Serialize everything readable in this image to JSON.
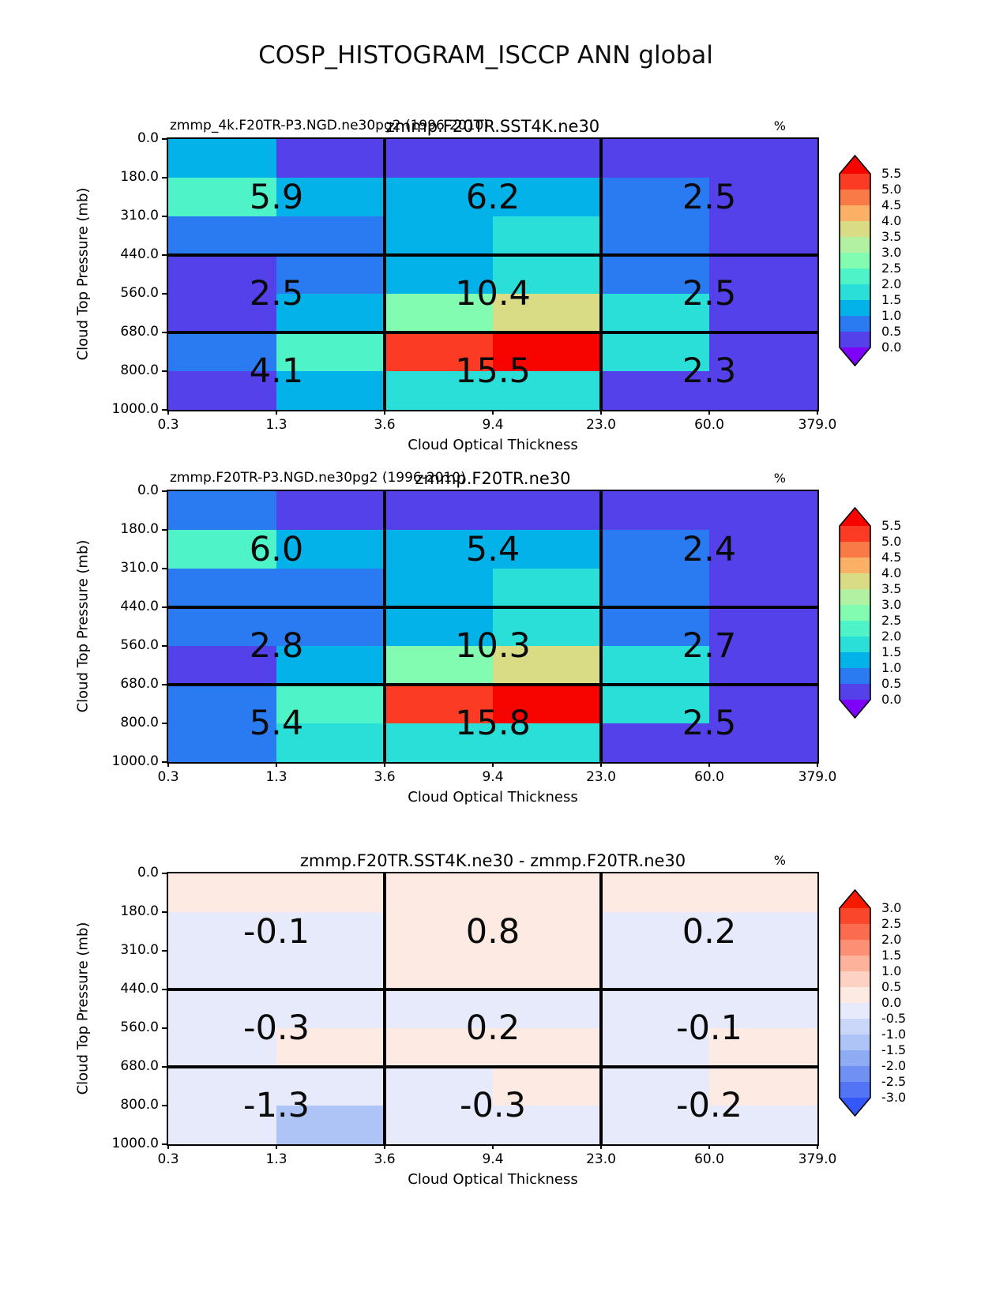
{
  "main_title": "COSP_HISTOGRAM_ISCCP ANN global",
  "shared": {
    "x_label": "Cloud Optical Thickness",
    "y_label": "Cloud Top Pressure (mb)",
    "x_ticks": [
      "0.3",
      "1.3",
      "3.6",
      "9.4",
      "23.0",
      "60.0",
      "379.0"
    ],
    "y_ticks": [
      "0.0",
      "180.0",
      "310.0",
      "440.0",
      "560.0",
      "680.0",
      "800.0",
      "1000.0"
    ],
    "unit_label": "%"
  },
  "panels": [
    {
      "name": "panel-1",
      "title_left": "zmmp_4k.F20TR-P3.NGD.ne30pg2 (1996-2010)",
      "title_center": "zmmp.F20TR.SST4K.ne30",
      "block_values": [
        [
          "5.9",
          "6.2",
          "2.5"
        ],
        [
          "2.5",
          "10.4",
          "2.5"
        ],
        [
          "4.1",
          "15.5",
          "2.3"
        ]
      ],
      "cell_colors": [
        [
          "#02b2e8",
          "#5441e9",
          "#5441e9",
          "#5441e9",
          "#5441e9",
          "#5441e9"
        ],
        [
          "#4ff3c8",
          "#02b2e8",
          "#02b2e8",
          "#02b2e8",
          "#2a7bf2",
          "#5441e9"
        ],
        [
          "#2a7bf2",
          "#2a7bf2",
          "#02b2e8",
          "#29dfd8",
          "#2a7bf2",
          "#5441e9"
        ],
        [
          "#5441e9",
          "#2a7bf2",
          "#02b2e8",
          "#29dfd8",
          "#2a7bf2",
          "#5441e9"
        ],
        [
          "#5441e9",
          "#02b2e8",
          "#81fcb1",
          "#d9dc84",
          "#29dfd8",
          "#5441e9"
        ],
        [
          "#2a7bf2",
          "#4ff3c8",
          "#fb3b24",
          "#f80400",
          "#29dfd8",
          "#5441e9"
        ],
        [
          "#5441e9",
          "#02b2e8",
          "#29dfd8",
          "#29dfd8",
          "#5441e9",
          "#5441e9"
        ]
      ],
      "colorbar": {
        "tick_labels": [
          "5.5",
          "5.0",
          "4.5",
          "4.0",
          "3.5",
          "3.0",
          "2.5",
          "2.0",
          "1.5",
          "1.0",
          "0.5",
          "0.0"
        ],
        "band_colors": [
          "#fb3b24",
          "#fa7a47",
          "#fbb165",
          "#d9dc84",
          "#b2f0a2",
          "#81fcb1",
          "#4ff3c8",
          "#29dfd8",
          "#02b2e8",
          "#2a7bf2",
          "#5441e9"
        ],
        "over_color": "#f80400",
        "under_color": "#7d02f7"
      }
    },
    {
      "name": "panel-2",
      "title_left": "zmmp.F20TR-P3.NGD.ne30pg2 (1996-2010)",
      "title_center": "zmmp.F20TR.ne30",
      "block_values": [
        [
          "6.0",
          "5.4",
          "2.4"
        ],
        [
          "2.8",
          "10.3",
          "2.7"
        ],
        [
          "5.4",
          "15.8",
          "2.5"
        ]
      ],
      "cell_colors": [
        [
          "#2a7bf2",
          "#5441e9",
          "#5441e9",
          "#5441e9",
          "#5441e9",
          "#5441e9"
        ],
        [
          "#4ff3c8",
          "#02b2e8",
          "#02b2e8",
          "#02b2e8",
          "#2a7bf2",
          "#5441e9"
        ],
        [
          "#2a7bf2",
          "#2a7bf2",
          "#02b2e8",
          "#29dfd8",
          "#2a7bf2",
          "#5441e9"
        ],
        [
          "#2a7bf2",
          "#2a7bf2",
          "#02b2e8",
          "#29dfd8",
          "#2a7bf2",
          "#5441e9"
        ],
        [
          "#5441e9",
          "#02b2e8",
          "#81fcb1",
          "#d9dc84",
          "#29dfd8",
          "#5441e9"
        ],
        [
          "#2a7bf2",
          "#4ff3c8",
          "#fb3b24",
          "#f80400",
          "#29dfd8",
          "#5441e9"
        ],
        [
          "#2a7bf2",
          "#29dfd8",
          "#29dfd8",
          "#29dfd8",
          "#5441e9",
          "#5441e9"
        ]
      ],
      "colorbar": {
        "tick_labels": [
          "5.5",
          "5.0",
          "4.5",
          "4.0",
          "3.5",
          "3.0",
          "2.5",
          "2.0",
          "1.5",
          "1.0",
          "0.5",
          "0.0"
        ],
        "band_colors": [
          "#fb3b24",
          "#fa7a47",
          "#fbb165",
          "#d9dc84",
          "#b2f0a2",
          "#81fcb1",
          "#4ff3c8",
          "#29dfd8",
          "#02b2e8",
          "#2a7bf2",
          "#5441e9"
        ],
        "over_color": "#f80400",
        "under_color": "#7d02f7"
      }
    },
    {
      "name": "panel-3",
      "title_left": "",
      "title_center": "zmmp.F20TR.SST4K.ne30 - zmmp.F20TR.ne30",
      "block_values": [
        [
          "-0.1",
          "0.8",
          "0.2"
        ],
        [
          "-0.3",
          "0.2",
          "-0.1"
        ],
        [
          "-1.3",
          "-0.3",
          "-0.2"
        ]
      ],
      "cell_colors": [
        [
          "#fdeae2",
          "#fdeae2",
          "#fdeae2",
          "#fdeae2",
          "#fdeae2",
          "#fdeae2"
        ],
        [
          "#e7eafb",
          "#e7eafb",
          "#fdeae2",
          "#fdeae2",
          "#e7eafb",
          "#e7eafb"
        ],
        [
          "#e7eafb",
          "#e7eafb",
          "#fdeae2",
          "#fdeae2",
          "#e7eafb",
          "#e7eafb"
        ],
        [
          "#e7eafb",
          "#e7eafb",
          "#e7eafb",
          "#e7eafb",
          "#e7eafb",
          "#e7eafb"
        ],
        [
          "#e7eafb",
          "#fdeae2",
          "#fdeae2",
          "#fdeae2",
          "#e7eafb",
          "#fdeae2"
        ],
        [
          "#e7eafb",
          "#e7eafb",
          "#e7eafb",
          "#fdeae2",
          "#e7eafb",
          "#fdeae2"
        ],
        [
          "#e7eafb",
          "#aec3f6",
          "#e7eafb",
          "#e7eafb",
          "#e7eafb",
          "#e7eafb"
        ]
      ],
      "colorbar": {
        "tick_labels": [
          "3.0",
          "2.5",
          "2.0",
          "1.5",
          "1.0",
          "0.5",
          "0.0",
          "-0.5",
          "-1.0",
          "-1.5",
          "-2.0",
          "-2.5",
          "-3.0"
        ],
        "band_colors": [
          "#fa472c",
          "#fb6b4f",
          "#fc8f74",
          "#fdb29c",
          "#fdd2c4",
          "#fdeae2",
          "#e7eafb",
          "#cbd7f9",
          "#aec3f6",
          "#8fabf4",
          "#7190f3",
          "#5274f5"
        ],
        "over_color": "#f61b00",
        "under_color": "#3358f7"
      }
    }
  ],
  "chart_data": [
    {
      "type": "heatmap",
      "title": "zmmp.F20TR.SST4K.ne30",
      "subtitle": "zmmp_4k.F20TR-P3.NGD.ne30pg2 (1996-2010)",
      "xlabel": "Cloud Optical Thickness",
      "ylabel": "Cloud Top Pressure (mb)",
      "units": "%",
      "x_bin_edges": [
        0.3,
        1.3,
        3.6,
        9.4,
        23.0,
        60.0,
        379.0
      ],
      "y_bin_edges": [
        0.0,
        180.0,
        310.0,
        440.0,
        560.0,
        680.0,
        800.0,
        1000.0
      ],
      "colorbar_range": [
        0.0,
        5.5
      ],
      "block_tau_ranges": [
        "0.3-3.6",
        "3.6-23.0",
        "23.0-379.0"
      ],
      "block_pressure_ranges": [
        "0-440",
        "440-680",
        "680-1000"
      ],
      "block_values": [
        [
          5.9,
          6.2,
          2.5
        ],
        [
          2.5,
          10.4,
          2.5
        ],
        [
          4.1,
          15.5,
          2.3
        ]
      ]
    },
    {
      "type": "heatmap",
      "title": "zmmp.F20TR.ne30",
      "subtitle": "zmmp.F20TR-P3.NGD.ne30pg2 (1996-2010)",
      "xlabel": "Cloud Optical Thickness",
      "ylabel": "Cloud Top Pressure (mb)",
      "units": "%",
      "x_bin_edges": [
        0.3,
        1.3,
        3.6,
        9.4,
        23.0,
        60.0,
        379.0
      ],
      "y_bin_edges": [
        0.0,
        180.0,
        310.0,
        440.0,
        560.0,
        680.0,
        800.0,
        1000.0
      ],
      "colorbar_range": [
        0.0,
        5.5
      ],
      "block_tau_ranges": [
        "0.3-3.6",
        "3.6-23.0",
        "23.0-379.0"
      ],
      "block_pressure_ranges": [
        "0-440",
        "440-680",
        "680-1000"
      ],
      "block_values": [
        [
          6.0,
          5.4,
          2.4
        ],
        [
          2.8,
          10.3,
          2.7
        ],
        [
          5.4,
          15.8,
          2.5
        ]
      ]
    },
    {
      "type": "heatmap",
      "title": "zmmp.F20TR.SST4K.ne30 - zmmp.F20TR.ne30",
      "xlabel": "Cloud Optical Thickness",
      "ylabel": "Cloud Top Pressure (mb)",
      "units": "%",
      "x_bin_edges": [
        0.3,
        1.3,
        3.6,
        9.4,
        23.0,
        60.0,
        379.0
      ],
      "y_bin_edges": [
        0.0,
        180.0,
        310.0,
        440.0,
        560.0,
        680.0,
        800.0,
        1000.0
      ],
      "colorbar_range": [
        -3.0,
        3.0
      ],
      "block_tau_ranges": [
        "0.3-3.6",
        "3.6-23.0",
        "23.0-379.0"
      ],
      "block_pressure_ranges": [
        "0-440",
        "440-680",
        "680-1000"
      ],
      "block_values": [
        [
          -0.1,
          0.8,
          0.2
        ],
        [
          -0.3,
          0.2,
          -0.1
        ],
        [
          -1.3,
          -0.3,
          -0.2
        ]
      ]
    }
  ]
}
